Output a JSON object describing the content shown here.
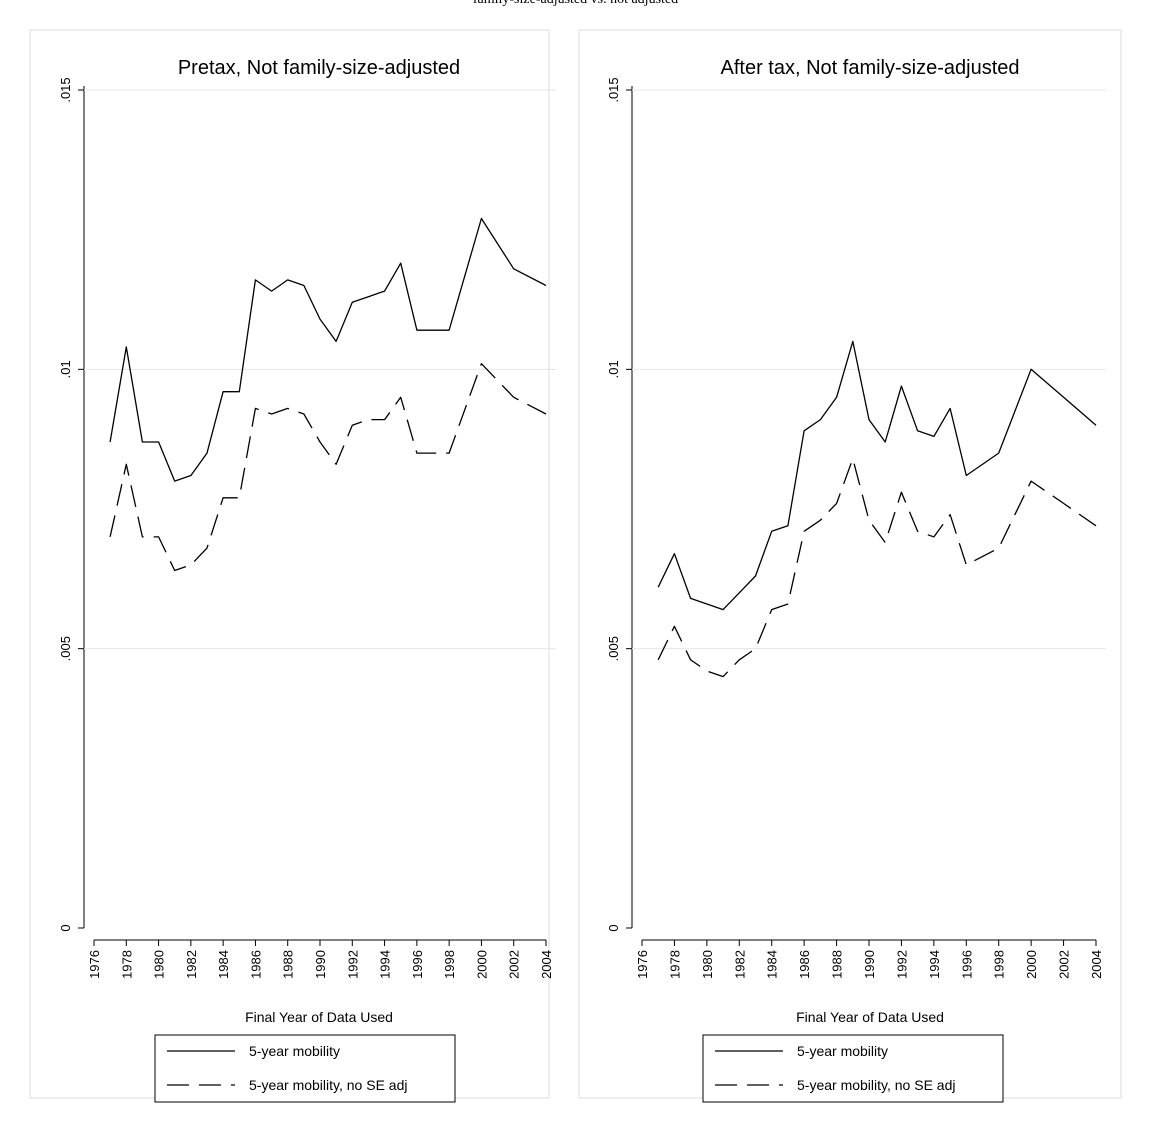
{
  "page": {
    "title_fragment": "family-size-adjusted vs. not adjusted"
  },
  "colors": {
    "line": "#000000",
    "grid": "#e6e6e6",
    "panel_border": "#dcdcdc",
    "background": "#ffffff"
  },
  "chart_data": [
    {
      "type": "line",
      "title": "Pretax, Not family-size-adjusted",
      "xlabel": "Final Year of Data Used",
      "ylabel": "",
      "xlim": [
        1976,
        2004
      ],
      "ylim": [
        0,
        0.015
      ],
      "xticks": [
        "1976",
        "1978",
        "1980",
        "1982",
        "1984",
        "1986",
        "1988",
        "1990",
        "1992",
        "1994",
        "1996",
        "1998",
        "2000",
        "2002",
        "2004"
      ],
      "yticks": [
        "0",
        ".005",
        ".01",
        ".015"
      ],
      "grid": true,
      "legend_position": "bottom",
      "series": [
        {
          "name": "5-year mobility",
          "style": "solid",
          "x": [
            1977,
            1978,
            1979,
            1980,
            1981,
            1982,
            1983,
            1984,
            1985,
            1986,
            1987,
            1988,
            1989,
            1990,
            1991,
            1992,
            1993,
            1994,
            1995,
            1996,
            1998,
            2000,
            2002,
            2004
          ],
          "values": [
            0.0087,
            0.0104,
            0.0087,
            0.0087,
            0.008,
            0.0081,
            0.0085,
            0.0096,
            0.0096,
            0.0116,
            0.0114,
            0.0116,
            0.0115,
            0.0109,
            0.0105,
            0.0112,
            0.0113,
            0.0114,
            0.0119,
            0.0107,
            0.0107,
            0.0127,
            0.0118,
            0.0115
          ]
        },
        {
          "name": "5-year mobility, no SE adj",
          "style": "dashed",
          "x": [
            1977,
            1978,
            1979,
            1980,
            1981,
            1982,
            1983,
            1984,
            1985,
            1986,
            1987,
            1988,
            1989,
            1990,
            1991,
            1992,
            1993,
            1994,
            1995,
            1996,
            1998,
            2000,
            2002,
            2004
          ],
          "values": [
            0.007,
            0.0083,
            0.007,
            0.007,
            0.0064,
            0.0065,
            0.0068,
            0.0077,
            0.0077,
            0.0093,
            0.0092,
            0.0093,
            0.0092,
            0.0087,
            0.0083,
            0.009,
            0.0091,
            0.0091,
            0.0095,
            0.0085,
            0.0085,
            0.0101,
            0.0095,
            0.0092
          ]
        }
      ]
    },
    {
      "type": "line",
      "title": "After tax, Not family-size-adjusted",
      "xlabel": "Final Year of Data Used",
      "ylabel": "",
      "xlim": [
        1976,
        2004
      ],
      "ylim": [
        0,
        0.015
      ],
      "xticks": [
        "1976",
        "1978",
        "1980",
        "1982",
        "1984",
        "1986",
        "1988",
        "1990",
        "1992",
        "1994",
        "1996",
        "1998",
        "2000",
        "2002",
        "2004"
      ],
      "yticks": [
        "0",
        ".005",
        ".01",
        ".015"
      ],
      "grid": true,
      "legend_position": "bottom",
      "series": [
        {
          "name": "5-year mobility",
          "style": "solid",
          "x": [
            1977,
            1978,
            1979,
            1980,
            1981,
            1982,
            1983,
            1984,
            1985,
            1986,
            1987,
            1988,
            1989,
            1990,
            1991,
            1992,
            1993,
            1994,
            1995,
            1996,
            1998,
            2000,
            2002,
            2004
          ],
          "values": [
            0.0061,
            0.0067,
            0.0059,
            0.0058,
            0.0057,
            0.006,
            0.0063,
            0.0071,
            0.0072,
            0.0089,
            0.0091,
            0.0095,
            0.0105,
            0.0091,
            0.0087,
            0.0097,
            0.0089,
            0.0088,
            0.0093,
            0.0081,
            0.0085,
            0.01,
            0.0095,
            0.009
          ]
        },
        {
          "name": "5-year mobility, no SE adj",
          "style": "dashed",
          "x": [
            1977,
            1978,
            1979,
            1980,
            1981,
            1982,
            1983,
            1984,
            1985,
            1986,
            1987,
            1988,
            1989,
            1990,
            1991,
            1992,
            1993,
            1994,
            1995,
            1996,
            1998,
            2000,
            2002,
            2004
          ],
          "values": [
            0.0048,
            0.0054,
            0.0048,
            0.0046,
            0.0045,
            0.0048,
            0.005,
            0.0057,
            0.0058,
            0.0071,
            0.0073,
            0.0076,
            0.0084,
            0.0073,
            0.0069,
            0.0078,
            0.0071,
            0.007,
            0.0074,
            0.0065,
            0.0068,
            0.008,
            0.0076,
            0.0072
          ]
        }
      ]
    }
  ]
}
